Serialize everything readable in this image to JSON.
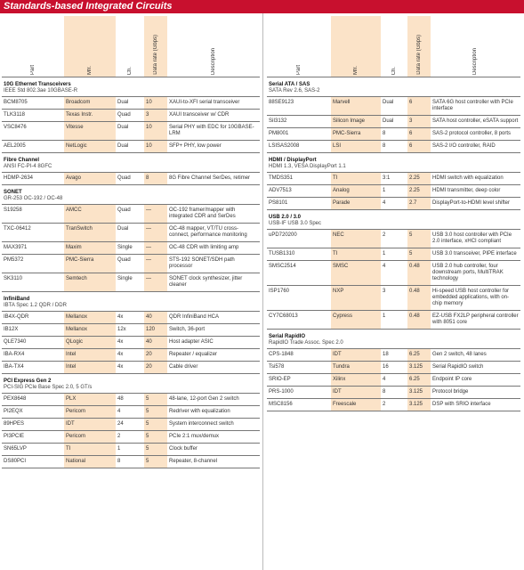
{
  "header": {
    "title": "Standards-based Integrated Circuits"
  },
  "tables": [
    {
      "headers": [
        "Part",
        "Mfr.",
        "Ch.",
        "Data rate (Gbps)",
        "Description"
      ],
      "sections": [
        {
          "title": "10G Ethernet Transceivers",
          "subtitle": "IEEE Std 802.3ae 10GBASE-R",
          "rows": [
            [
              "BCM8705",
              "Broadcom",
              "Dual",
              "10",
              "XAUI-to-XFI serial transceiver"
            ],
            [
              "TLK3118",
              "Texas Instr.",
              "Quad",
              "3",
              "XAUI transceiver w/ CDR"
            ],
            [
              "VSC8476",
              "Vitesse",
              "Dual",
              "10",
              "Serial PHY with EDC for 10GBASE-LRM"
            ],
            [
              "AEL2005",
              "NetLogic",
              "Dual",
              "10",
              "SFP+ PHY, low power"
            ]
          ]
        },
        {
          "title": "Fibre Channel",
          "subtitle": "ANSI FC-PI-4 8GFC",
          "rows": [
            [
              "HDMP-2634",
              "Avago",
              "Quad",
              "8",
              "8G Fibre Channel SerDes, retimer"
            ]
          ]
        },
        {
          "title": "SONET",
          "subtitle": "GR-253 OC-192 / OC-48",
          "rows": [
            [
              "S19258",
              "AMCC",
              "Quad",
              "—",
              "OC-192 framer/mapper with integrated CDR and SerDes"
            ],
            [
              "TXC-06412",
              "TranSwitch",
              "Dual",
              "—",
              "OC-48 mapper, VT/TU cross-connect, performance monitoring"
            ],
            [
              "MAX3971",
              "Maxim",
              "Single",
              "—",
              "OC-48 CDR with limiting amp"
            ],
            [
              "PM5372",
              "PMC-Sierra",
              "Quad",
              "—",
              "STS-192 SONET/SDH path processor"
            ],
            [
              "SK3110",
              "Semtech",
              "Single",
              "—",
              "SONET clock synthesizer, jitter cleaner"
            ]
          ]
        },
        {
          "title": "InfiniBand",
          "subtitle": "IBTA Spec 1.2 QDR / DDR",
          "rows": [
            [
              "IB4X-QDR",
              "Mellanox",
              "4x",
              "40",
              "QDR InfiniBand HCA"
            ],
            [
              "IB12X",
              "Mellanox",
              "12x",
              "120",
              "Switch, 36-port"
            ],
            [
              "QLE7340",
              "QLogic",
              "4x",
              "40",
              "Host adapter ASIC"
            ],
            [
              "IBA-RX4",
              "Intel",
              "4x",
              "20",
              "Repeater / equalizer"
            ],
            [
              "IBA-TX4",
              "Intel",
              "4x",
              "20",
              "Cable driver"
            ]
          ]
        },
        {
          "title": "PCI Express Gen 2",
          "subtitle": "PCI-SIG PCIe Base Spec 2.0, 5 GT/s",
          "rows": [
            [
              "PEX8648",
              "PLX",
              "48",
              "5",
              "48-lane, 12-port Gen 2 switch"
            ],
            [
              "PI2EQX",
              "Pericom",
              "4",
              "5",
              "Redriver with equalization"
            ],
            [
              "89HPES",
              "IDT",
              "24",
              "5",
              "System interconnect switch"
            ],
            [
              "PI3PCIE",
              "Pericom",
              "2",
              "5",
              "PCIe 2:1 mux/demux"
            ],
            [
              "SN65LVP",
              "TI",
              "1",
              "5",
              "Clock buffer"
            ],
            [
              "DS80PCI",
              "National",
              "8",
              "5",
              "Repeater, 8-channel"
            ]
          ]
        }
      ]
    },
    {
      "headers": [
        "Part",
        "Mfr.",
        "Ch.",
        "Data rate (Gbps)",
        "Description"
      ],
      "sections": [
        {
          "title": "Serial ATA / SAS",
          "subtitle": "SATA Rev 2.6, SAS-2",
          "rows": [
            [
              "88SE9123",
              "Marvell",
              "Dual",
              "6",
              "SATA 6G host controller with PCIe interface"
            ],
            [
              "SiI3132",
              "Silicon Image",
              "Dual",
              "3",
              "SATA host controller, eSATA support"
            ],
            [
              "PM8001",
              "PMC-Sierra",
              "8",
              "6",
              "SAS-2 protocol controller, 8 ports"
            ],
            [
              "LSISAS2008",
              "LSI",
              "8",
              "6",
              "SAS-2 I/O controller, RAID"
            ]
          ]
        },
        {
          "title": "HDMI / DisplayPort",
          "subtitle": "HDMI 1.3, VESA DisplayPort 1.1",
          "rows": [
            [
              "TMDS351",
              "TI",
              "3:1",
              "2.25",
              "HDMI switch with equalization"
            ],
            [
              "ADV7513",
              "Analog",
              "1",
              "2.25",
              "HDMI transmitter, deep color"
            ],
            [
              "PS8101",
              "Parade",
              "4",
              "2.7",
              "DisplayPort-to-HDMI level shifter"
            ]
          ]
        },
        {
          "title": "USB 2.0 / 3.0",
          "subtitle": "USB-IF USB 3.0 Spec",
          "rows": [
            [
              "uPD720200",
              "NEC",
              "2",
              "5",
              "USB 3.0 host controller with PCIe 2.0 interface, xHCI compliant"
            ],
            [
              "TUSB1310",
              "TI",
              "1",
              "5",
              "USB 3.0 transceiver, PIPE interface"
            ],
            [
              "SMSC2514",
              "SMSC",
              "4",
              "0.48",
              "USB 2.0 hub controller, four downstream ports, MultiTRAK technology"
            ],
            [
              "ISP1760",
              "NXP",
              "3",
              "0.48",
              "Hi-speed USB host controller for embedded applications, with on-chip memory"
            ],
            [
              "CY7C68013",
              "Cypress",
              "1",
              "0.48",
              "EZ-USB FX2LP peripheral controller with 8051 core"
            ]
          ]
        },
        {
          "title": "Serial RapidIO",
          "subtitle": "RapidIO Trade Assoc. Spec 2.0",
          "rows": [
            [
              "CPS-1848",
              "IDT",
              "18",
              "6.25",
              "Gen 2 switch, 48 lanes"
            ],
            [
              "Tsi578",
              "Tundra",
              "16",
              "3.125",
              "Serial RapidIO switch"
            ],
            [
              "SRIO-EP",
              "Xilinx",
              "4",
              "6.25",
              "Endpoint IP core"
            ],
            [
              "PRS-1000",
              "IDT",
              "8",
              "3.125",
              "Protocol bridge"
            ],
            [
              "MSC8156",
              "Freescale",
              "2",
              "3.125",
              "DSP with SRIO interface"
            ]
          ]
        }
      ]
    }
  ]
}
